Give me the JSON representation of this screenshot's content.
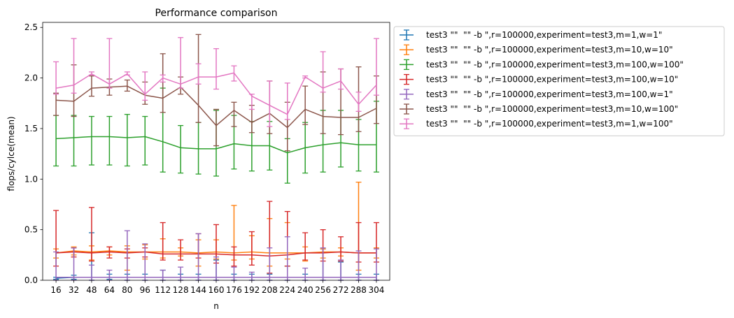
{
  "chart_data": {
    "type": "line",
    "title": "Performance comparison",
    "xlabel": "n",
    "ylabel": "flops/cylce(mean)",
    "x": [
      16,
      32,
      48,
      64,
      80,
      96,
      112,
      128,
      144,
      160,
      176,
      192,
      208,
      224,
      240,
      256,
      272,
      288,
      304
    ],
    "x_tick_labels": [
      "16",
      "32",
      "48",
      "64",
      "80",
      "96",
      "112",
      "128",
      "144",
      "160",
      "176",
      "192",
      "208",
      "224",
      "240",
      "256",
      "272",
      "288",
      "304"
    ],
    "xlim": [
      4,
      316
    ],
    "ylim": [
      0,
      2.55
    ],
    "y_ticks": [
      0.0,
      0.5,
      1.0,
      1.5,
      2.0,
      2.5
    ],
    "y_tick_labels": [
      "0.0",
      "0.5",
      "1.0",
      "1.5",
      "2.0",
      "2.5"
    ],
    "grid": false,
    "legend_position": "outside-upper-right",
    "series": [
      {
        "name": "test3 \"\"  \"\" -b \",r=100000,experiment=test3,m=1,w=1\"",
        "color": "#1f77b4",
        "values": [
          0.02,
          0.03,
          0.03,
          0.03,
          0.03,
          0.03,
          0.03,
          0.03,
          0.03,
          0.03,
          0.03,
          0.03,
          0.03,
          0.03,
          0.03,
          0.03,
          0.03,
          0.03,
          0.03
        ],
        "err_low": [
          0.01,
          0.02,
          0.03,
          0.02,
          0.03,
          0.03,
          0.03,
          0.03,
          0.03,
          0.03,
          0.03,
          0.03,
          0.03,
          0.03,
          0.03,
          0.03,
          0.03,
          0.03,
          0.03
        ],
        "err_high": [
          0.01,
          0.02,
          0.44,
          0.03,
          0.03,
          0.03,
          0.07,
          0.03,
          0.03,
          0.17,
          0.03,
          0.03,
          0.03,
          0.11,
          0.03,
          0.28,
          0.15,
          0.03,
          0.03
        ]
      },
      {
        "name": "test3 \"\"  \"\" -b \",r=100000,experiment=test3,m=10,w=10\"",
        "color": "#ff7f0e",
        "values": [
          0.27,
          0.29,
          0.28,
          0.29,
          0.28,
          0.28,
          0.28,
          0.28,
          0.27,
          0.28,
          0.27,
          0.28,
          0.27,
          0.27,
          0.27,
          0.28,
          0.28,
          0.27,
          0.27
        ],
        "err_low": [
          0.05,
          0.04,
          0.08,
          0.04,
          0.18,
          0.07,
          0.06,
          0.04,
          0.13,
          0.07,
          0.07,
          0.07,
          0.13,
          0.06,
          0.08,
          0.06,
          0.04,
          0.17,
          0.05
        ],
        "err_high": [
          0.04,
          0.04,
          0.06,
          0.04,
          0.06,
          0.07,
          0.13,
          0.04,
          0.13,
          0.12,
          0.47,
          0.16,
          0.34,
          0.3,
          0.06,
          0.03,
          0.04,
          0.7,
          0.05
        ]
      },
      {
        "name": "test3 \"\"  \"\" -b \",r=100000,experiment=test3,m=100,w=100\"",
        "color": "#2ca02c",
        "values": [
          1.4,
          1.41,
          1.42,
          1.42,
          1.41,
          1.42,
          1.37,
          1.31,
          1.3,
          1.3,
          1.35,
          1.33,
          1.33,
          1.26,
          1.31,
          1.34,
          1.36,
          1.34,
          1.34
        ],
        "err_low": [
          0.27,
          0.28,
          0.28,
          0.28,
          0.28,
          0.28,
          0.3,
          0.25,
          0.25,
          0.27,
          0.25,
          0.25,
          0.24,
          0.3,
          0.25,
          0.27,
          0.24,
          0.26,
          0.27
        ],
        "err_high": [
          0.23,
          0.22,
          0.2,
          0.2,
          0.23,
          0.2,
          0.53,
          0.22,
          0.26,
          0.38,
          0.28,
          0.24,
          0.24,
          0.14,
          0.25,
          0.34,
          0.32,
          0.25,
          0.43
        ]
      },
      {
        "name": "test3 \"\"  \"\" -b \",r=100000,experiment=test3,m=100,w=10\"",
        "color": "#d62728",
        "values": [
          0.27,
          0.28,
          0.27,
          0.28,
          0.27,
          0.28,
          0.26,
          0.26,
          0.26,
          0.26,
          0.25,
          0.25,
          0.24,
          0.25,
          0.27,
          0.27,
          0.28,
          0.27,
          0.27
        ],
        "err_low": [
          0.13,
          0.05,
          0.08,
          0.06,
          0.05,
          0.05,
          0.06,
          0.06,
          0.04,
          0.09,
          0.11,
          0.1,
          0.17,
          0.11,
          0.07,
          0.08,
          0.09,
          0.09,
          0.09
        ],
        "err_high": [
          0.42,
          0.04,
          0.45,
          0.05,
          0.04,
          0.04,
          0.31,
          0.14,
          0.2,
          0.29,
          0.08,
          0.23,
          0.54,
          0.43,
          0.2,
          0.23,
          0.15,
          0.3,
          0.3
        ]
      },
      {
        "name": "test3 \"\"  \"\" -b \",r=100000,experiment=test3,m=100,w=1\"",
        "color": "#9467bd",
        "values": [
          0.03,
          0.03,
          0.03,
          0.03,
          0.03,
          0.03,
          0.03,
          0.03,
          0.03,
          0.03,
          0.03,
          0.03,
          0.03,
          0.03,
          0.03,
          0.03,
          0.03,
          0.03,
          0.03
        ],
        "err_low": [
          0.03,
          0.03,
          0.03,
          0.03,
          0.03,
          0.03,
          0.03,
          0.03,
          0.03,
          0.03,
          0.03,
          0.03,
          0.03,
          0.03,
          0.03,
          0.03,
          0.03,
          0.03,
          0.03
        ],
        "err_high": [
          0.25,
          0.29,
          0.12,
          0.07,
          0.46,
          0.33,
          0.07,
          0.1,
          0.43,
          0.2,
          0.1,
          0.05,
          0.29,
          0.4,
          0.09,
          0.29,
          0.17,
          0.26,
          0.28
        ]
      },
      {
        "name": "test3 \"\"  \"\" -b \",r=100000,experiment=test3,m=10,w=100\"",
        "color": "#8c564b",
        "values": [
          1.78,
          1.77,
          1.9,
          1.91,
          1.92,
          1.83,
          1.8,
          1.91,
          1.73,
          1.53,
          1.68,
          1.56,
          1.65,
          1.51,
          1.69,
          1.62,
          1.61,
          1.61,
          1.7
        ],
        "err_low": [
          0.15,
          0.15,
          0.08,
          0.08,
          0.05,
          0.09,
          0.14,
          0.07,
          0.17,
          0.2,
          0.16,
          0.1,
          0.2,
          0.23,
          0.15,
          0.17,
          0.17,
          0.14,
          0.15
        ],
        "err_high": [
          0.07,
          0.36,
          0.12,
          0.08,
          0.06,
          0.13,
          0.44,
          0.1,
          0.7,
          0.16,
          0.08,
          0.17,
          0.32,
          0.25,
          0.23,
          0.44,
          0.48,
          0.5,
          0.32
        ]
      },
      {
        "name": "test3 \"\"  \"\" -b \",r=100000,experiment=test3,m=1,w=100\"",
        "color": "#e377c2",
        "values": [
          1.9,
          1.93,
          2.04,
          1.94,
          2.04,
          1.84,
          2.0,
          1.94,
          2.01,
          2.01,
          2.05,
          1.82,
          1.73,
          1.64,
          2.01,
          1.9,
          1.97,
          1.74,
          1.93
        ],
        "err_low": [
          0.06,
          0.08,
          0.01,
          0.04,
          0.01,
          0.06,
          0.04,
          0.04,
          0.07,
          0.12,
          0.08,
          0.13,
          0.21,
          0.05,
          0.01,
          0.04,
          0.08,
          0.07,
          0.1
        ],
        "err_high": [
          0.26,
          0.46,
          0.02,
          0.45,
          0.02,
          0.22,
          0.03,
          0.46,
          0.13,
          0.28,
          0.07,
          0.02,
          0.24,
          0.31,
          0.01,
          0.36,
          0.12,
          0.12,
          0.46
        ]
      }
    ]
  }
}
